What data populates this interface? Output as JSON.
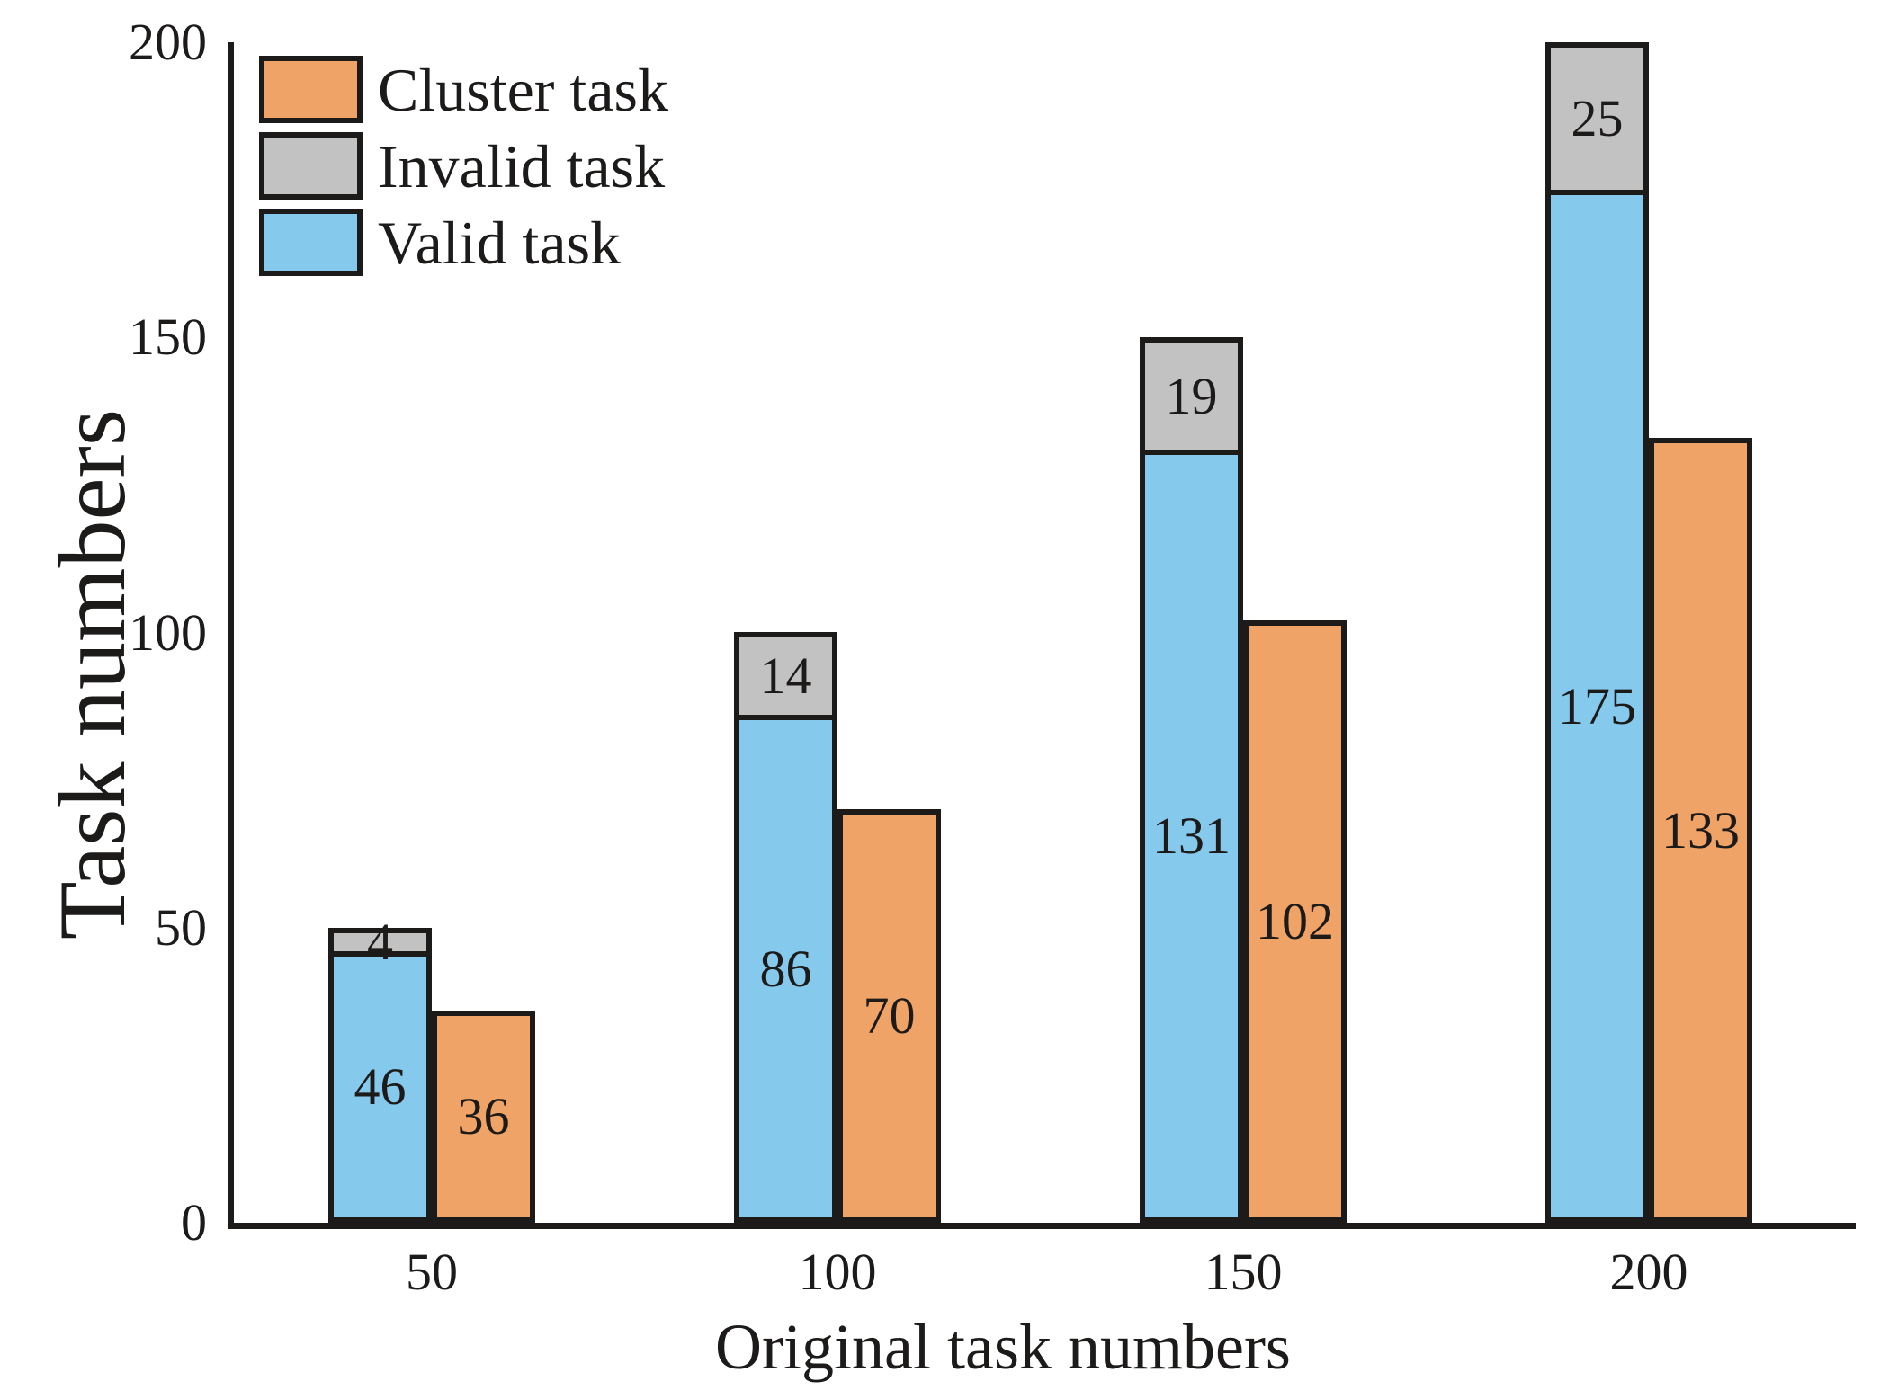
{
  "figure": {
    "background": "#ffffff",
    "axis_color": "#1d1b1a",
    "text_color": "#1d1b1a"
  },
  "chart_data": {
    "type": "bar",
    "title": "",
    "xlabel": "Original task numbers",
    "ylabel": "Task numbers",
    "categories": [
      "50",
      "100",
      "150",
      "200"
    ],
    "series": [
      {
        "name": "Valid task",
        "color": "#85C9ED",
        "role": "stack-bottom",
        "values": [
          46,
          86,
          131,
          175
        ]
      },
      {
        "name": "Invalid task",
        "color": "#C2C2C2",
        "role": "stack-top",
        "values": [
          4,
          14,
          19,
          25
        ]
      },
      {
        "name": "Cluster task",
        "color": "#F0A367",
        "role": "adjacent",
        "values": [
          36,
          70,
          102,
          133
        ]
      }
    ],
    "stack_totals": [
      50,
      100,
      150,
      200
    ],
    "bar_value_labels": true,
    "ylim": [
      0,
      200
    ],
    "yticks": [
      "0",
      "50",
      "100",
      "150",
      "200"
    ],
    "grid": false,
    "legend": {
      "position": "upper-left",
      "entries": [
        {
          "label": "Cluster task",
          "color": "#F0A367"
        },
        {
          "label": "Invalid task",
          "color": "#C2C2C2"
        },
        {
          "label": "Valid task",
          "color": "#85C9ED"
        }
      ]
    }
  }
}
